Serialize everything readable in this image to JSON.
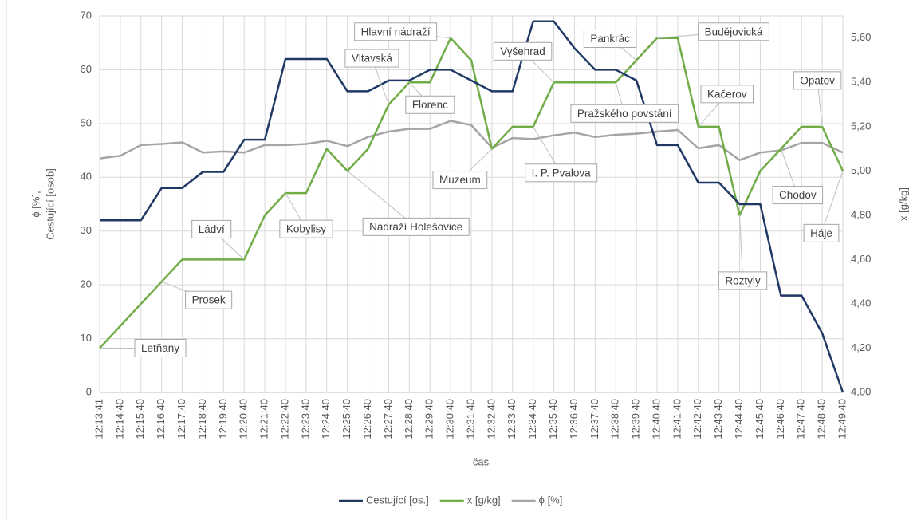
{
  "chart_data": {
    "type": "line",
    "xlabel": "čas",
    "ylabel": [
      "ϕ [%],",
      "Cestující [osob]"
    ],
    "y2label": "x [g/kg]",
    "categories": [
      "12:13:41",
      "12:14:40",
      "12:15:40",
      "12:16:40",
      "12:17:40",
      "12:18:40",
      "12:19:40",
      "12:20:40",
      "12:21:40",
      "12:22:40",
      "12:23:40",
      "12:24:40",
      "12:25:40",
      "12:26:40",
      "12:27:40",
      "12:28:40",
      "12:29:40",
      "12:30:40",
      "12:31:40",
      "12:32:40",
      "12:33:40",
      "12:34:40",
      "12:35:40",
      "12:36:40",
      "12:37:40",
      "12:38:40",
      "12:39:40",
      "12:40:40",
      "12:41:40",
      "12:42:40",
      "12:43:40",
      "12:44:40",
      "12:45:40",
      "12:46:40",
      "12:47:40",
      "12:48:40",
      "12:49:40"
    ],
    "ylim": [
      0,
      70
    ],
    "yticks": [
      0,
      10,
      20,
      30,
      40,
      50,
      60,
      70
    ],
    "y2lim": [
      4,
      5.7
    ],
    "y2ticks": [
      {
        "value": 4.0,
        "label": "4,00"
      },
      {
        "value": 4.2,
        "label": "4,20"
      },
      {
        "value": 4.4,
        "label": "4,40"
      },
      {
        "value": 4.6,
        "label": "4,60"
      },
      {
        "value": 4.8,
        "label": "4,80"
      },
      {
        "value": 5.0,
        "label": "5,00"
      },
      {
        "value": 5.2,
        "label": "5,20"
      },
      {
        "value": 5.4,
        "label": "5,40"
      },
      {
        "value": 5.6,
        "label": "5,60"
      }
    ],
    "grid": true,
    "legend": "bottom",
    "series": [
      {
        "name": "Cestující [os.]",
        "color": "#203864",
        "values": [
          32,
          32,
          32,
          38,
          38,
          41,
          41,
          47,
          47,
          62,
          62,
          62,
          56,
          56,
          58,
          58,
          60,
          60,
          58,
          56,
          56,
          69,
          69,
          64,
          60,
          60,
          58,
          46,
          46,
          39,
          39,
          35,
          35,
          18,
          18,
          11,
          0
        ]
      },
      {
        "name": "x [g/kg]",
        "color": "#70ad47",
        "axis": "y2",
        "values": [
          4.2,
          4.3,
          4.4,
          4.5,
          4.6,
          4.6,
          4.6,
          4.6,
          4.8,
          4.9,
          4.9,
          5.1,
          5.0,
          5.1,
          5.3,
          5.4,
          5.4,
          5.6,
          5.5,
          5.1,
          5.2,
          5.2,
          5.4,
          5.4,
          5.4,
          5.4,
          5.5,
          5.6,
          5.6,
          5.2,
          5.2,
          4.8,
          5.0,
          5.1,
          5.2,
          5.2,
          5.0
        ]
      },
      {
        "name": "ϕ [%]",
        "color": "#a5a5a5",
        "values": [
          43.5,
          44,
          46,
          46.2,
          46.5,
          44.6,
          44.8,
          44.6,
          46,
          46,
          46.2,
          46.8,
          45.8,
          47.5,
          48.5,
          49,
          49,
          50.5,
          49.7,
          45.5,
          47.3,
          47.1,
          47.8,
          48.3,
          47.5,
          47.9,
          48.1,
          48.5,
          48.8,
          45.4,
          46,
          43.2,
          44.6,
          45,
          46.4,
          46.4,
          44.6
        ]
      }
    ],
    "annotations": [
      {
        "text": "Letňany",
        "x": "12:13:41"
      },
      {
        "text": "Prosek",
        "x": "12:16:40"
      },
      {
        "text": "Ládví",
        "x": "12:20:40"
      },
      {
        "text": "Kobylisy",
        "x": "12:22:40"
      },
      {
        "text": "Nádraží Holešovice",
        "x": "12:25:40"
      },
      {
        "text": "Vltavská",
        "x": "12:27:40"
      },
      {
        "text": "Florenc",
        "x": "12:28:40"
      },
      {
        "text": "Hlavní nádraží",
        "x": "12:30:40"
      },
      {
        "text": "Muzeum",
        "x": "12:32:40"
      },
      {
        "text": "I. P. Pvalova",
        "x": "12:34:40"
      },
      {
        "text": "Vyšehrad",
        "x": "12:35:40"
      },
      {
        "text": "Pražského povstání",
        "x": "12:38:40"
      },
      {
        "text": "Pankrác",
        "x": "12:39:40"
      },
      {
        "text": "Budějovická",
        "x": "12:40:40"
      },
      {
        "text": "Kačerov",
        "x": "12:42:40"
      },
      {
        "text": "Roztyly",
        "x": "12:44:40"
      },
      {
        "text": "Chodov",
        "x": "12:46:40"
      },
      {
        "text": "Opatov",
        "x": "12:48:40"
      },
      {
        "text": "Háje",
        "x": "12:49:40"
      }
    ]
  }
}
